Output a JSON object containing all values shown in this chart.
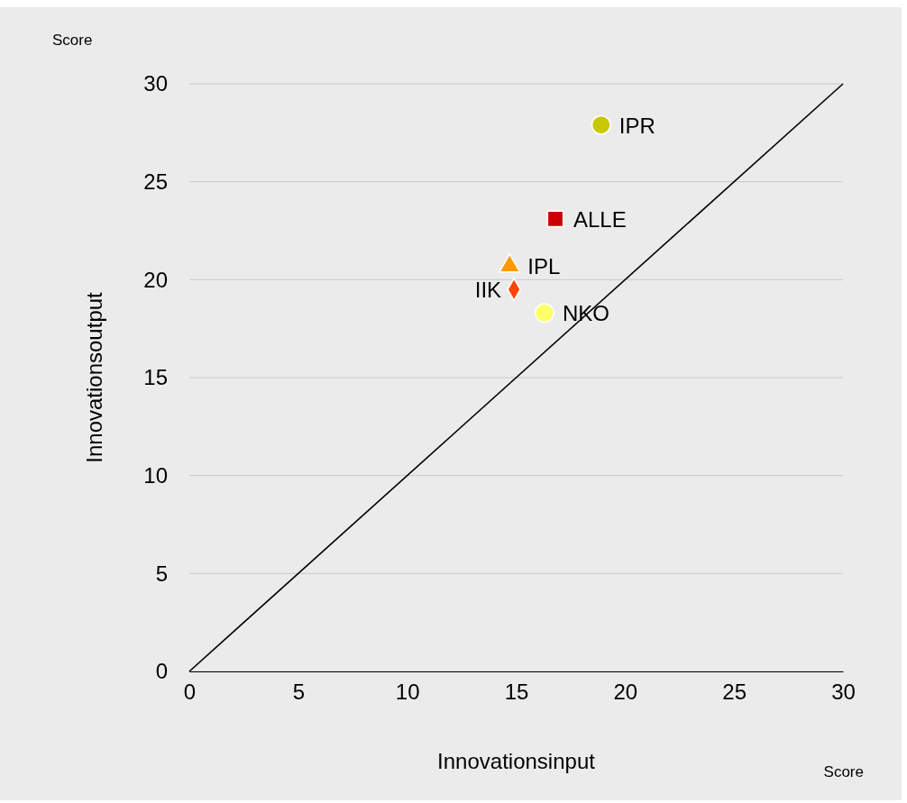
{
  "chart_data": {
    "type": "scatter",
    "xlabel": "Innovationsinput",
    "ylabel": "Innovationsoutput",
    "annotations": [
      "Score",
      "Score"
    ],
    "xlim": [
      0,
      30
    ],
    "ylim": [
      0,
      30
    ],
    "xticks": [
      0,
      5,
      10,
      15,
      20,
      25,
      30
    ],
    "yticks": [
      0,
      5,
      10,
      15,
      20,
      25,
      30
    ],
    "grid": "y",
    "legend": false,
    "series": [
      {
        "type": "line",
        "x": [
          0,
          30
        ],
        "values": [
          0,
          30
        ],
        "color": "#000000"
      },
      {
        "name": "IPR",
        "x": [
          18.9
        ],
        "values": [
          27.9
        ],
        "color": "#c8c800",
        "marker": "circle"
      },
      {
        "name": "ALLE",
        "x": [
          16.8
        ],
        "values": [
          23.1
        ],
        "color": "#cc0000",
        "marker": "square"
      },
      {
        "name": "IPL",
        "x": [
          14.7
        ],
        "values": [
          20.7
        ],
        "color": "#ff9900",
        "marker": "triangle"
      },
      {
        "name": "IIK",
        "x": [
          14.9
        ],
        "values": [
          19.5
        ],
        "color": "#ff4400",
        "marker": "diamond"
      },
      {
        "name": "NKO",
        "x": [
          16.3
        ],
        "values": [
          18.3
        ],
        "color": "#ffff66",
        "marker": "circle"
      }
    ]
  }
}
